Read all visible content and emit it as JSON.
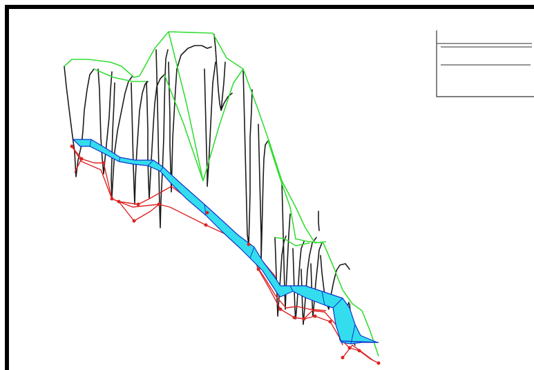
{
  "colors": {
    "background": "#ffffff",
    "frame": "#000000",
    "terrain_section": "#1a1a1a",
    "upper_surface": "#33dd33",
    "lower_surface": "#dd2222",
    "node_marker": "#dd2222",
    "water_fill": "#33ddee",
    "water_edge": "#1133cc",
    "legend_border": "#333333",
    "legend_line": "#555555"
  },
  "legend": {
    "entries": [
      {
        "label": ""
      },
      {
        "label": ""
      },
      {
        "label": ""
      }
    ]
  }
}
